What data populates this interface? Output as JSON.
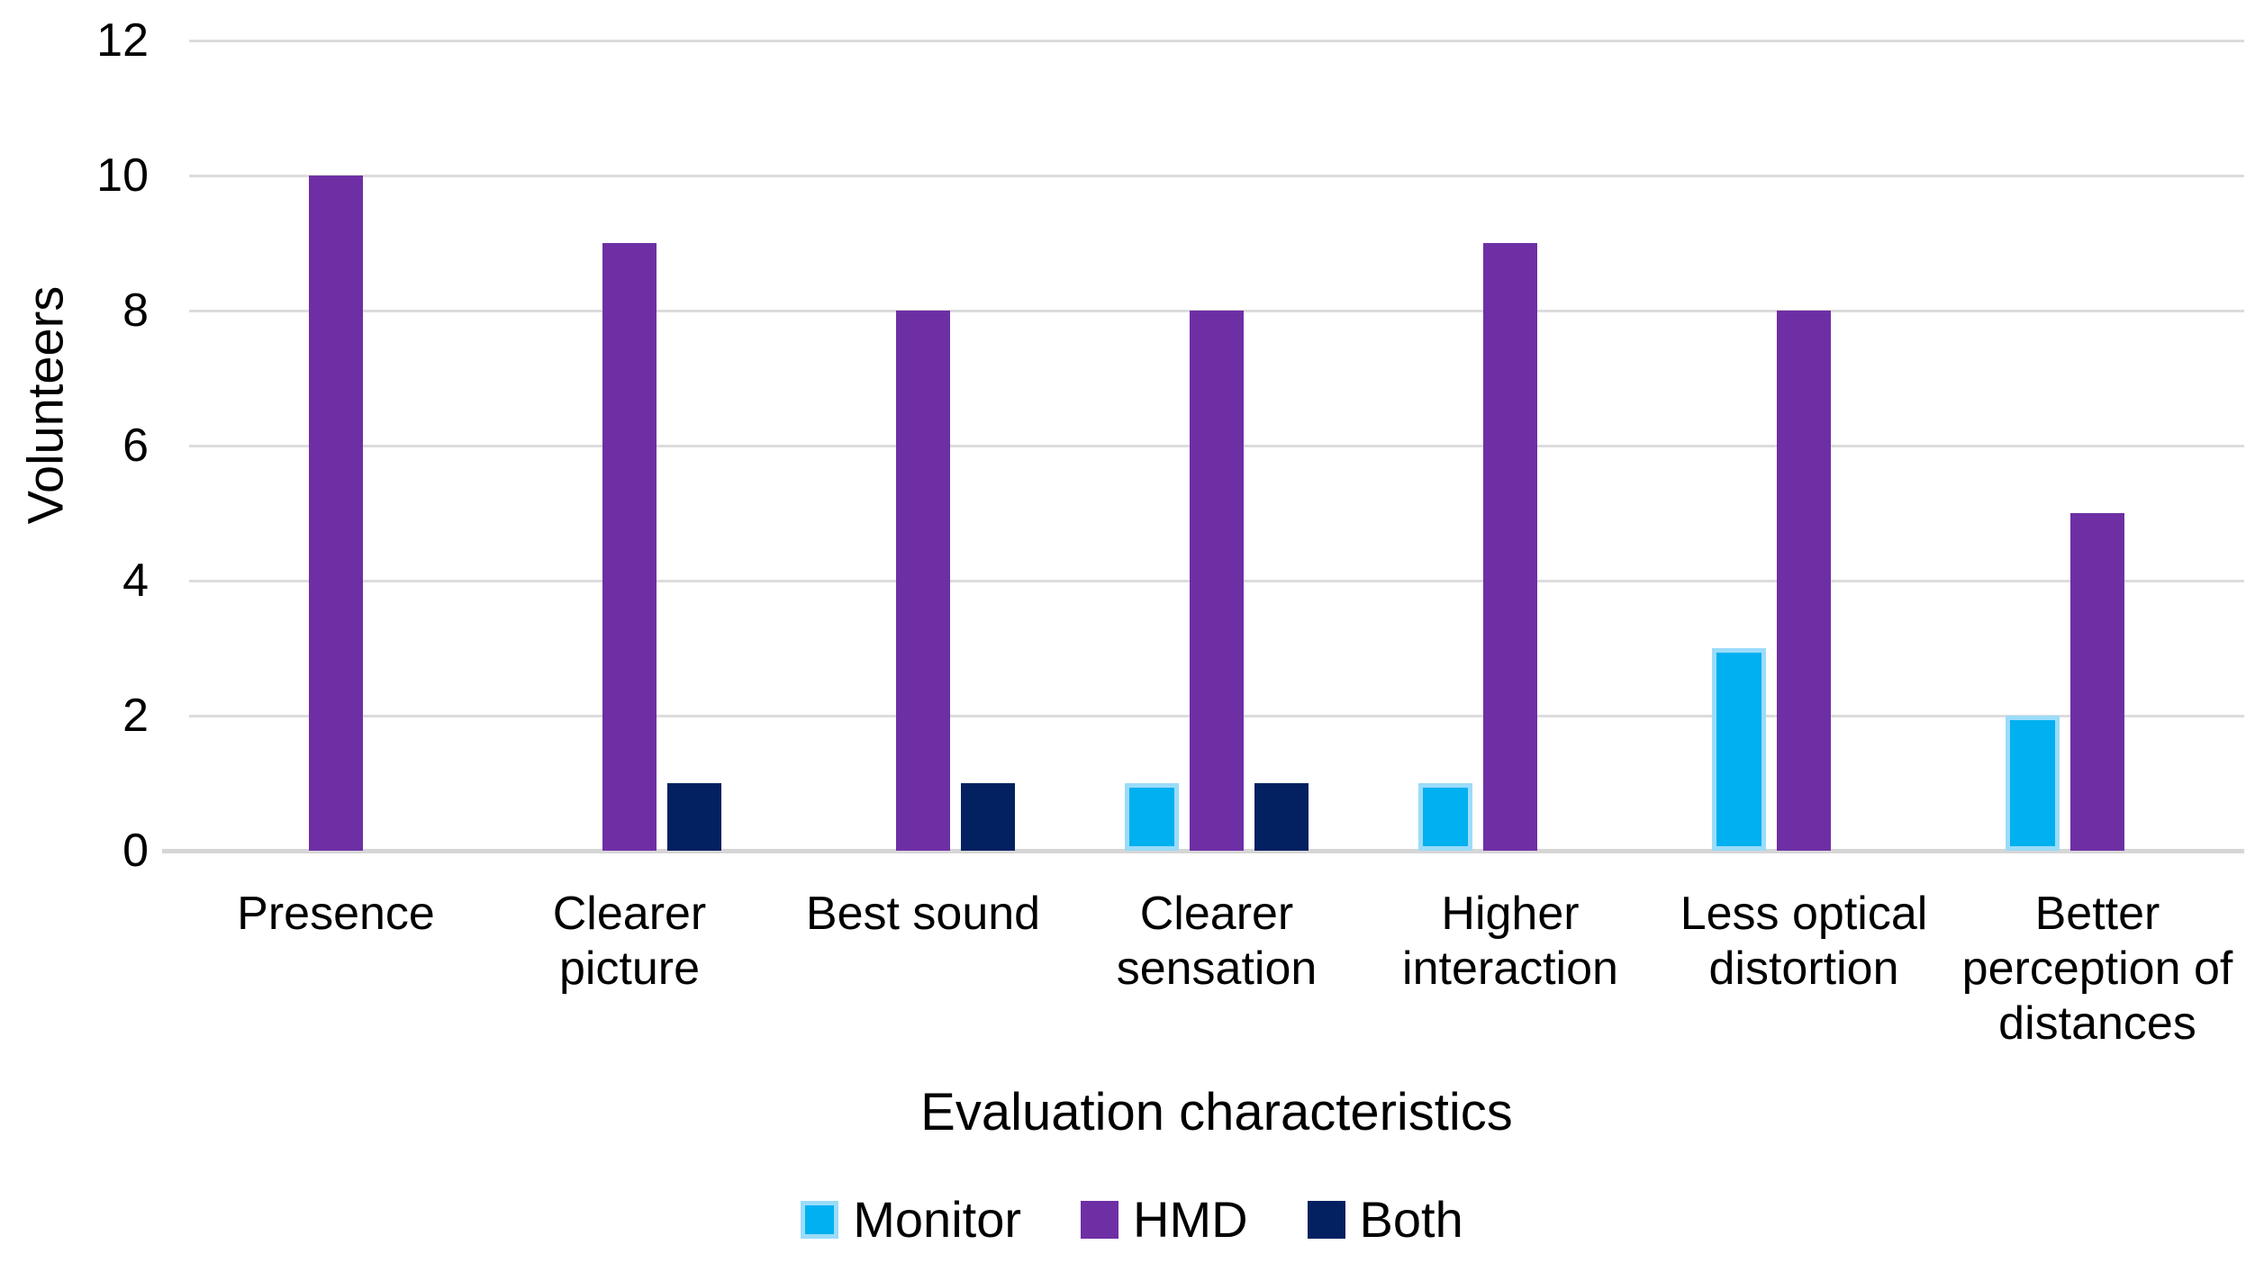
{
  "chart_data": {
    "type": "bar",
    "title": "",
    "xlabel": "Evaluation characteristics",
    "ylabel": "Volunteers",
    "categories": [
      "Presence",
      "Clearer picture",
      "Best sound",
      "Clearer sensation",
      "Higher interaction",
      "Less optical distortion",
      "Better perception of distances"
    ],
    "categories_display": [
      "Presence",
      "Clearer\npicture",
      "Best sound",
      "Clearer\nsensation",
      "Higher\ninteraction",
      "Less optical\ndistortion",
      "Better\nperception of\ndistances"
    ],
    "series": [
      {
        "name": "Monitor",
        "values": [
          0,
          0,
          0,
          1,
          1,
          3,
          2
        ],
        "fill": "#00B0F0",
        "border": "#9BDCF9"
      },
      {
        "name": "HMD",
        "values": [
          10,
          9,
          8,
          8,
          9,
          8,
          5
        ],
        "fill": "#6E2FA5",
        "border": "#6E2FA5"
      },
      {
        "name": "Both",
        "values": [
          0,
          1,
          1,
          1,
          0,
          0,
          0
        ],
        "fill": "#032061",
        "border": "#032061"
      }
    ],
    "ylim": [
      0,
      12
    ],
    "yticks": [
      0,
      2,
      4,
      6,
      8,
      10,
      12
    ],
    "grid": true,
    "legend_position": "bottom",
    "colors": {
      "gridline": "#DCDCDC",
      "axis_line": "#D6D6D6",
      "text": "#000000",
      "background": "#FFFFFF"
    }
  }
}
